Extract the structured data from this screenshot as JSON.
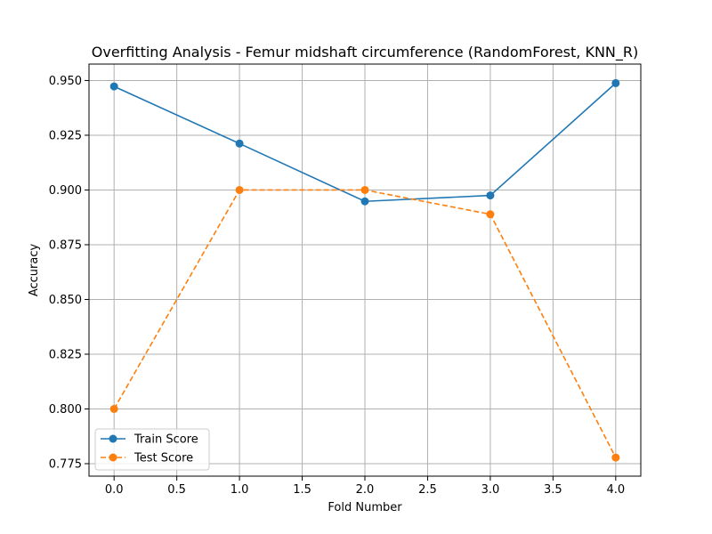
{
  "chart_data": {
    "type": "line",
    "title": "Overfitting Analysis - Femur midshaft circumference (RandomForest, KNN_R)",
    "xlabel": "Fold Number",
    "ylabel": "Accuracy",
    "x": [
      0,
      1,
      2,
      3,
      4
    ],
    "xlim": [
      -0.2,
      4.2
    ],
    "ylim": [
      0.7693,
      0.9575
    ],
    "xticks": [
      "0.0",
      "0.5",
      "1.0",
      "1.5",
      "2.0",
      "2.5",
      "3.0",
      "3.5",
      "4.0"
    ],
    "yticks": [
      "0.775",
      "0.800",
      "0.825",
      "0.850",
      "0.875",
      "0.900",
      "0.925",
      "0.950"
    ],
    "grid": true,
    "legend_position": "lower-left",
    "series": [
      {
        "name": "Train Score",
        "color": "#1f77b4",
        "linestyle": "solid",
        "marker": "circle",
        "values": [
          0.9473,
          0.9212,
          0.8948,
          0.8975,
          0.9488
        ]
      },
      {
        "name": "Test Score",
        "color": "#ff7f0e",
        "linestyle": "dashed",
        "marker": "circle",
        "values": [
          0.8,
          0.9,
          0.9,
          0.8889,
          0.7778
        ]
      }
    ]
  }
}
